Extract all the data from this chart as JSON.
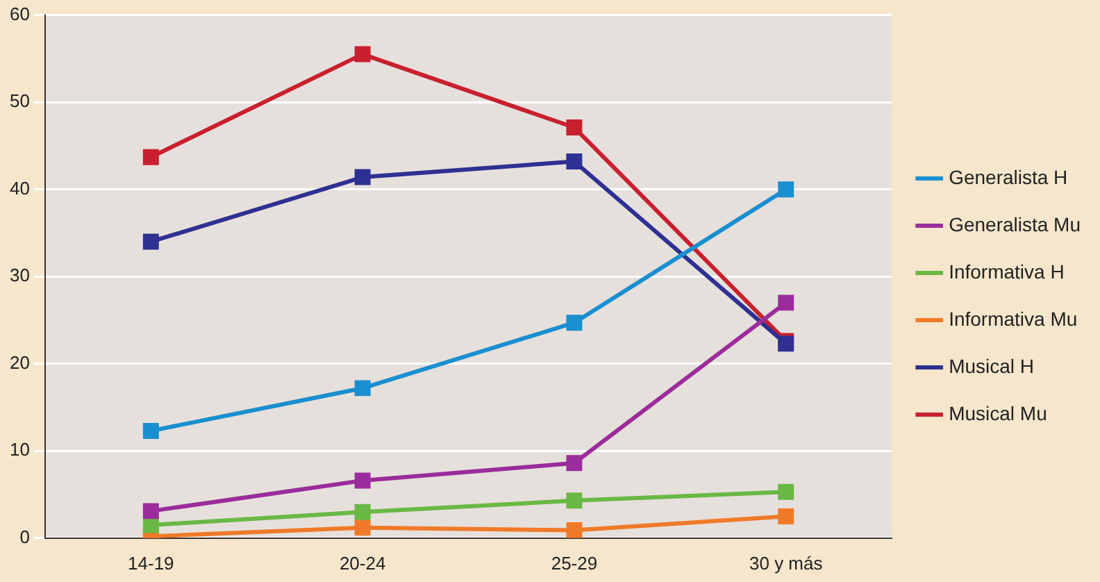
{
  "chart_data": {
    "type": "line",
    "categories": [
      "14-19",
      "20-24",
      "25-29",
      "30 y más"
    ],
    "series": [
      {
        "name": "Generalista H",
        "color": "#1a8fd0",
        "values": [
          12.3,
          17.2,
          24.7,
          40
        ]
      },
      {
        "name": "Generalista Mu",
        "color": "#9b2c9b",
        "values": [
          3.1,
          6.6,
          8.6,
          27
        ]
      },
      {
        "name": "Informativa H",
        "color": "#6ab845",
        "values": [
          1.5,
          3.0,
          4.3,
          5.3
        ]
      },
      {
        "name": "Informativa Mu",
        "color": "#f07a28",
        "values": [
          0.2,
          1.2,
          0.9,
          2.5
        ]
      },
      {
        "name": "Musical H",
        "color": "#2e3092",
        "values": [
          34,
          41.4,
          43.2,
          22.3
        ]
      },
      {
        "name": "Musical Mu",
        "color": "#c8202f",
        "values": [
          43.7,
          55.5,
          47.1,
          22.6
        ]
      }
    ],
    "ylim": [
      0,
      60
    ],
    "yticks": [
      0,
      10,
      20,
      30,
      40,
      50,
      60
    ],
    "grid": "y",
    "legend": "right",
    "marker": "square",
    "line_style": "solid"
  }
}
